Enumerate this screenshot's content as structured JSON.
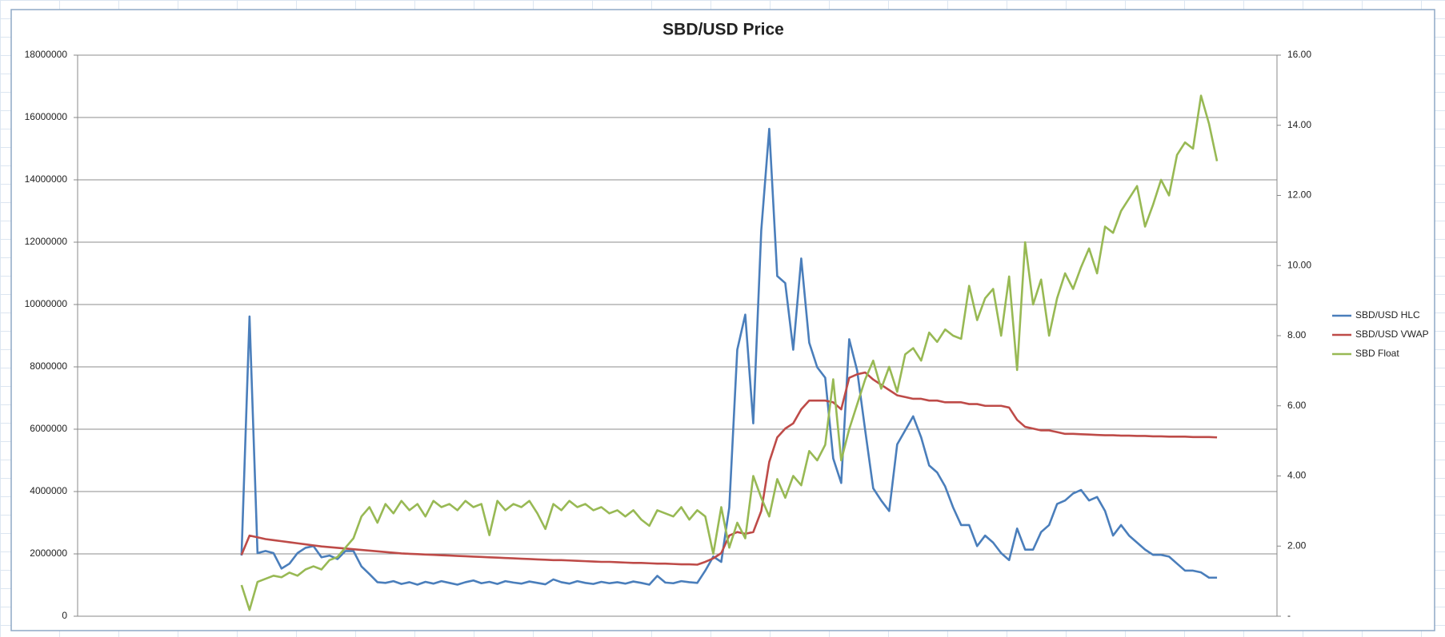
{
  "chart_data": {
    "type": "line",
    "title": "SBD/USD Price",
    "legend": "right",
    "grid": true,
    "ylim": [
      0,
      18000000
    ],
    "yticks": [
      0,
      2000000,
      4000000,
      6000000,
      8000000,
      10000000,
      12000000,
      14000000,
      16000000,
      18000000
    ],
    "y2lim": [
      0,
      16
    ],
    "y2ticks": [
      {
        "value": 0,
        "label": "-"
      },
      {
        "value": 2,
        "label": "2.00"
      },
      {
        "value": 4,
        "label": "4.00"
      },
      {
        "value": 6,
        "label": "6.00"
      },
      {
        "value": 8,
        "label": "8.00"
      },
      {
        "value": 10,
        "label": "10.00"
      },
      {
        "value": 12,
        "label": "12.00"
      },
      {
        "value": 14,
        "label": "14.00"
      },
      {
        "value": 16,
        "label": "16.00"
      }
    ],
    "series": [
      {
        "name": "SBD/USD HLC",
        "color": "#4a7ebb",
        "axis": "y2",
        "values": [
          null,
          null,
          null,
          null,
          null,
          null,
          null,
          null,
          null,
          null,
          null,
          null,
          null,
          null,
          null,
          null,
          null,
          null,
          null,
          null,
          1.73,
          8.55,
          1.8,
          1.86,
          1.8,
          1.36,
          1.5,
          1.8,
          1.95,
          2.0,
          1.68,
          1.73,
          1.63,
          1.86,
          1.86,
          1.42,
          1.2,
          0.97,
          0.95,
          1.0,
          0.92,
          0.97,
          0.9,
          0.98,
          0.93,
          1.0,
          0.95,
          0.9,
          0.97,
          1.02,
          0.94,
          0.98,
          0.92,
          1.0,
          0.96,
          0.93,
          0.99,
          0.95,
          0.91,
          1.05,
          0.97,
          0.93,
          1.0,
          0.95,
          0.92,
          0.98,
          0.94,
          0.97,
          0.93,
          0.99,
          0.95,
          0.9,
          1.15,
          0.96,
          0.94,
          1.0,
          0.97,
          0.95,
          1.3,
          1.7,
          1.55,
          3.1,
          7.6,
          8.6,
          5.5,
          11.0,
          13.9,
          9.7,
          9.5,
          7.6,
          10.2,
          7.8,
          7.1,
          6.8,
          4.5,
          3.8,
          7.9,
          7.0,
          5.3,
          3.65,
          3.3,
          3.0,
          4.9,
          5.3,
          5.7,
          5.1,
          4.3,
          4.1,
          3.7,
          3.1,
          2.6,
          2.6,
          2.0,
          2.3,
          2.1,
          1.8,
          1.6,
          2.5,
          1.9,
          1.9,
          2.4,
          2.6,
          3.2,
          3.3,
          3.5,
          3.6,
          3.3,
          3.4,
          3.0,
          2.3,
          2.6,
          2.3,
          2.1,
          1.9,
          1.75,
          1.75,
          1.7,
          1.5,
          1.3,
          1.3,
          1.25,
          1.1,
          1.1,
          null,
          null,
          null,
          null,
          null,
          null,
          null
        ]
      },
      {
        "name": "SBD/USD VWAP",
        "color": "#be4b48",
        "axis": "y2",
        "values": [
          null,
          null,
          null,
          null,
          null,
          null,
          null,
          null,
          null,
          null,
          null,
          null,
          null,
          null,
          null,
          null,
          null,
          null,
          null,
          null,
          1.75,
          2.3,
          2.25,
          2.2,
          2.17,
          2.14,
          2.11,
          2.08,
          2.05,
          2.02,
          1.99,
          1.97,
          1.95,
          1.93,
          1.91,
          1.89,
          1.87,
          1.85,
          1.83,
          1.81,
          1.79,
          1.78,
          1.77,
          1.76,
          1.75,
          1.74,
          1.73,
          1.72,
          1.71,
          1.7,
          1.69,
          1.68,
          1.67,
          1.66,
          1.65,
          1.64,
          1.63,
          1.62,
          1.61,
          1.6,
          1.6,
          1.59,
          1.58,
          1.57,
          1.56,
          1.55,
          1.55,
          1.54,
          1.53,
          1.52,
          1.52,
          1.51,
          1.5,
          1.5,
          1.49,
          1.48,
          1.48,
          1.47,
          1.55,
          1.65,
          1.8,
          2.3,
          2.4,
          2.35,
          2.4,
          3.0,
          4.4,
          5.1,
          5.35,
          5.5,
          5.9,
          6.15,
          6.15,
          6.15,
          6.1,
          5.9,
          6.8,
          6.9,
          6.95,
          6.75,
          6.6,
          6.45,
          6.3,
          6.25,
          6.2,
          6.2,
          6.15,
          6.15,
          6.1,
          6.1,
          6.1,
          6.05,
          6.05,
          6.0,
          6.0,
          6.0,
          5.95,
          5.6,
          5.4,
          5.35,
          5.3,
          5.3,
          5.25,
          5.2,
          5.2,
          5.19,
          5.18,
          5.17,
          5.16,
          5.16,
          5.15,
          5.15,
          5.14,
          5.14,
          5.13,
          5.13,
          5.12,
          5.12,
          5.12,
          5.11,
          5.11,
          5.11,
          5.1,
          null,
          null,
          null,
          null,
          null,
          null,
          null
        ]
      },
      {
        "name": "SBD Float",
        "color": "#98b954",
        "values": [
          null,
          null,
          null,
          null,
          null,
          null,
          null,
          null,
          null,
          null,
          null,
          null,
          null,
          null,
          null,
          null,
          null,
          null,
          null,
          null,
          1000000,
          200000,
          1100000,
          1200000,
          1300000,
          1250000,
          1400000,
          1300000,
          1500000,
          1600000,
          1500000,
          1800000,
          1900000,
          2200000,
          2500000,
          3200000,
          3500000,
          3000000,
          3600000,
          3300000,
          3700000,
          3400000,
          3600000,
          3200000,
          3700000,
          3500000,
          3600000,
          3400000,
          3700000,
          3500000,
          3600000,
          2600000,
          3700000,
          3400000,
          3600000,
          3500000,
          3700000,
          3300000,
          2800000,
          3600000,
          3400000,
          3700000,
          3500000,
          3600000,
          3400000,
          3500000,
          3300000,
          3400000,
          3200000,
          3400000,
          3100000,
          2900000,
          3400000,
          3300000,
          3200000,
          3500000,
          3100000,
          3400000,
          3200000,
          2000000,
          3500000,
          2200000,
          3000000,
          2500000,
          4500000,
          3800000,
          3200000,
          4400000,
          3800000,
          4500000,
          4200000,
          5300000,
          5000000,
          5500000,
          7600000,
          5000000,
          6000000,
          6800000,
          7600000,
          8200000,
          7300000,
          8000000,
          7200000,
          8400000,
          8600000,
          8200000,
          9100000,
          8800000,
          9200000,
          9000000,
          8900000,
          10600000,
          9500000,
          10200000,
          10500000,
          9000000,
          10900000,
          7900000,
          12000000,
          10000000,
          10800000,
          9000000,
          10200000,
          11000000,
          10500000,
          11200000,
          11800000,
          11000000,
          12500000,
          12300000,
          13000000,
          13400000,
          13800000,
          12500000,
          13200000,
          14000000,
          13500000,
          14800000,
          15200000,
          15000000,
          16700000,
          15800000,
          14600000,
          null,
          null,
          null,
          null,
          null,
          null,
          null
        ]
      }
    ]
  }
}
